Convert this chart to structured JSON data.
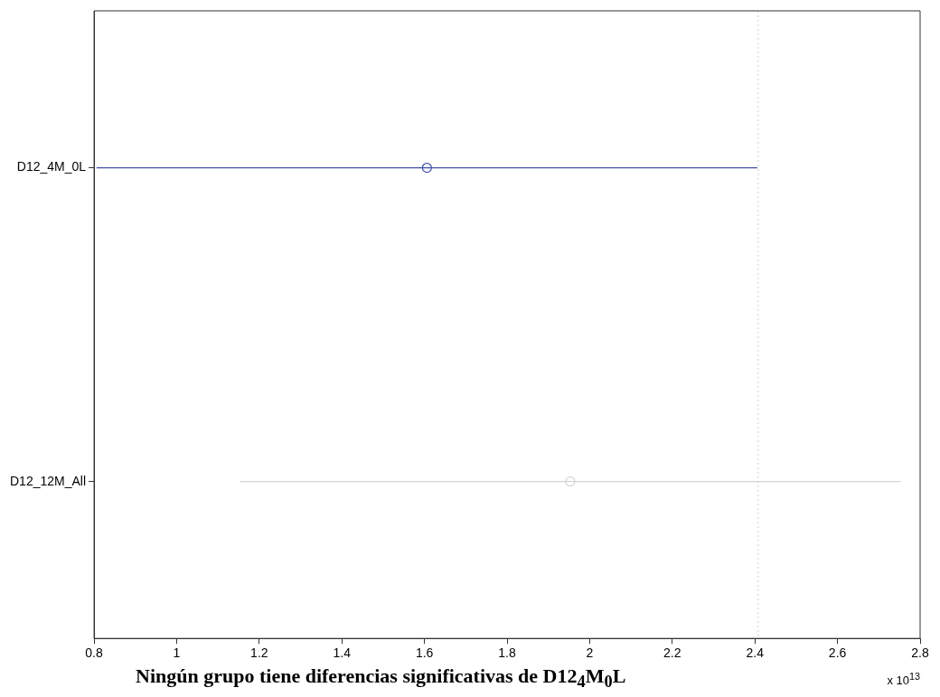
{
  "chart_data": {
    "type": "scatter",
    "orientation": "horizontal",
    "xlabel": "Ningún grupo tiene diferencias significativas de D12$_{4}$M$_{0}$L",
    "categories": [
      "D12_4M_0L",
      "D12_12M_All"
    ],
    "values": [
      1.606,
      1.953
    ],
    "colors": [
      "#4050a8",
      "#d4d4d4"
    ],
    "errors": [
      0.8,
      0.8
    ],
    "xlim": [
      0.8,
      2.8
    ],
    "xticks": [
      0.8,
      1,
      1.2,
      1.4,
      1.6,
      1.8,
      2,
      2.2,
      2.4,
      2.6,
      2.8
    ],
    "ref_lines": [
      {
        "axis": "x",
        "value": 2.408,
        "color": "#d0d0d0",
        "line_style": "dotted"
      }
    ],
    "annotations": [
      "x 10$^{13}$"
    ],
    "marker": "circle",
    "grid": false,
    "legend": false
  }
}
